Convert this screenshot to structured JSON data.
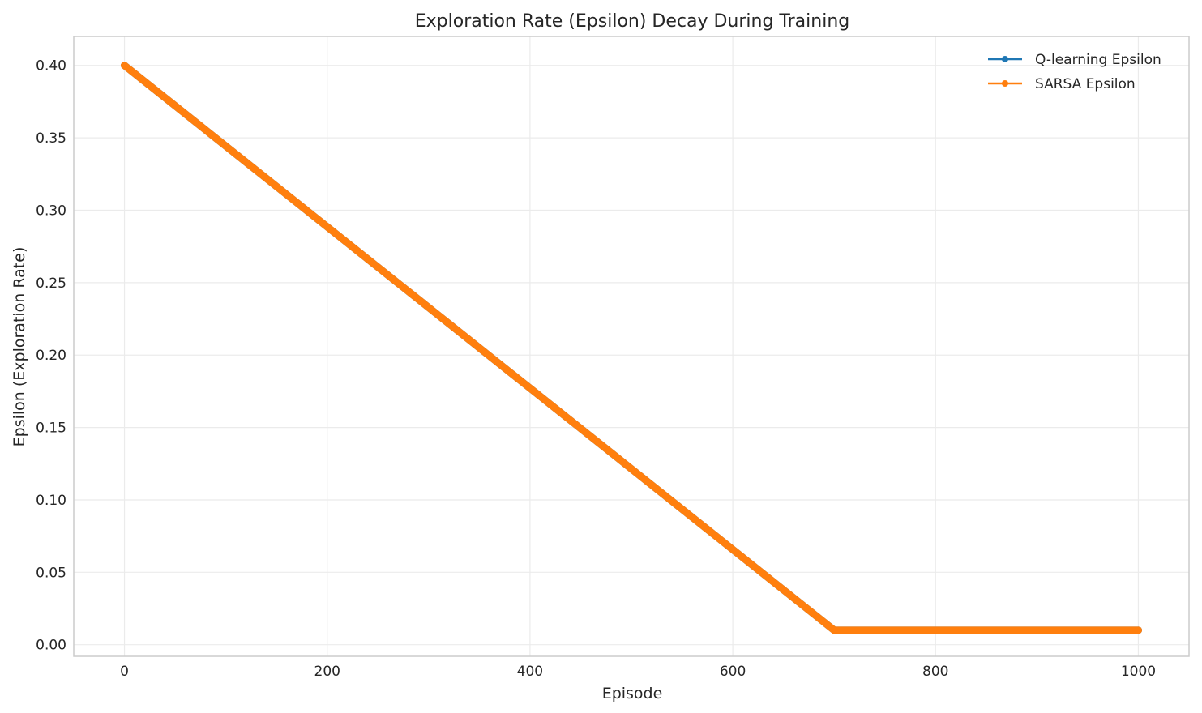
{
  "chart_data": {
    "type": "line",
    "title": "Exploration Rate (Epsilon) Decay During Training",
    "xlabel": "Episode",
    "ylabel": "Epsilon (Exploration Rate)",
    "xlim": [
      -50,
      1050
    ],
    "ylim": [
      -0.008,
      0.42
    ],
    "x_ticks": [
      0,
      200,
      400,
      600,
      800,
      1000
    ],
    "x_tick_labels": [
      "0",
      "200",
      "400",
      "600",
      "800",
      "1000"
    ],
    "y_ticks": [
      0.0,
      0.05,
      0.1,
      0.15,
      0.2,
      0.25,
      0.3,
      0.35,
      0.4
    ],
    "y_tick_labels": [
      "0.00",
      "0.05",
      "0.10",
      "0.15",
      "0.20",
      "0.25",
      "0.30",
      "0.35",
      "0.40"
    ],
    "grid": true,
    "legend_position": "top-right",
    "series": [
      {
        "name": "Q-learning Epsilon",
        "color": "#1f77b4",
        "marker": "circle",
        "x": [
          0,
          700,
          1000
        ],
        "values": [
          0.4,
          0.01,
          0.01
        ]
      },
      {
        "name": "SARSA Epsilon",
        "color": "#ff7f0e",
        "marker": "circle",
        "x": [
          0,
          700,
          1000
        ],
        "values": [
          0.4,
          0.01,
          0.01
        ]
      }
    ]
  }
}
